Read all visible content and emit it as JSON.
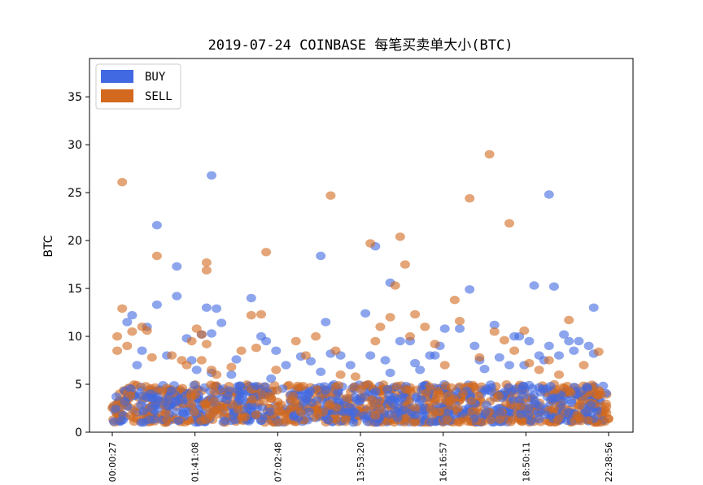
{
  "chart_data": {
    "type": "scatter",
    "title": "2019-07-24 COINBASE 每笔买卖单大小(BTC)",
    "xlabel": "",
    "ylabel": "BTC",
    "ylim": [
      0,
      39
    ],
    "yticks": [
      0,
      5,
      10,
      15,
      20,
      25,
      30,
      35
    ],
    "xtick_labels": [
      "00:00:27",
      "01:41:08",
      "07:02:48",
      "13:53:20",
      "16:16:57",
      "18:50:11",
      "22:38:56"
    ],
    "grid": false,
    "legend_position": "top-left",
    "series": [
      {
        "name": "BUY",
        "color": "#4169e1",
        "dense_band_max": 5,
        "outliers": [
          [
            0.03,
            11.5
          ],
          [
            0.04,
            12.2
          ],
          [
            0.05,
            7.0
          ],
          [
            0.06,
            8.5
          ],
          [
            0.07,
            11.0
          ],
          [
            0.09,
            21.6
          ],
          [
            0.09,
            13.3
          ],
          [
            0.11,
            8.0
          ],
          [
            0.13,
            17.3
          ],
          [
            0.13,
            14.2
          ],
          [
            0.15,
            9.8
          ],
          [
            0.16,
            7.5
          ],
          [
            0.17,
            6.5
          ],
          [
            0.2,
            6.2
          ],
          [
            0.18,
            10.2
          ],
          [
            0.19,
            13.0
          ],
          [
            0.2,
            10.3
          ],
          [
            0.21,
            12.9
          ],
          [
            0.2,
            26.8
          ],
          [
            0.22,
            11.4
          ],
          [
            0.24,
            6.0
          ],
          [
            0.25,
            7.6
          ],
          [
            0.28,
            14.0
          ],
          [
            0.3,
            10.0
          ],
          [
            0.31,
            9.5
          ],
          [
            0.33,
            8.5
          ],
          [
            0.32,
            5.6
          ],
          [
            0.35,
            7.0
          ],
          [
            0.38,
            7.9
          ],
          [
            0.4,
            7.4
          ],
          [
            0.42,
            6.3
          ],
          [
            0.42,
            18.4
          ],
          [
            0.43,
            11.5
          ],
          [
            0.44,
            8.2
          ],
          [
            0.46,
            8.0
          ],
          [
            0.48,
            7.0
          ],
          [
            0.51,
            12.4
          ],
          [
            0.52,
            8.0
          ],
          [
            0.53,
            19.4
          ],
          [
            0.55,
            7.5
          ],
          [
            0.56,
            6.2
          ],
          [
            0.56,
            15.6
          ],
          [
            0.58,
            9.5
          ],
          [
            0.6,
            9.5
          ],
          [
            0.61,
            7.2
          ],
          [
            0.62,
            6.5
          ],
          [
            0.64,
            8.0
          ],
          [
            0.65,
            8.0
          ],
          [
            0.66,
            9.0
          ],
          [
            0.67,
            10.8
          ],
          [
            0.7,
            10.8
          ],
          [
            0.72,
            14.9
          ],
          [
            0.73,
            9.0
          ],
          [
            0.74,
            7.5
          ],
          [
            0.75,
            6.6
          ],
          [
            0.77,
            11.2
          ],
          [
            0.78,
            7.8
          ],
          [
            0.8,
            7.0
          ],
          [
            0.81,
            10.0
          ],
          [
            0.82,
            10.0
          ],
          [
            0.83,
            7.0
          ],
          [
            0.84,
            9.5
          ],
          [
            0.85,
            15.3
          ],
          [
            0.86,
            8.0
          ],
          [
            0.87,
            7.5
          ],
          [
            0.88,
            24.8
          ],
          [
            0.88,
            9.0
          ],
          [
            0.89,
            15.2
          ],
          [
            0.9,
            8.0
          ],
          [
            0.91,
            10.2
          ],
          [
            0.92,
            9.5
          ],
          [
            0.93,
            8.5
          ],
          [
            0.94,
            9.5
          ],
          [
            0.96,
            9.0
          ],
          [
            0.97,
            8.2
          ],
          [
            0.97,
            13.0
          ]
        ]
      },
      {
        "name": "SELL",
        "color": "#d2691e",
        "dense_band_max": 5,
        "outliers": [
          [
            0.01,
            10.0
          ],
          [
            0.01,
            8.5
          ],
          [
            0.02,
            12.9
          ],
          [
            0.02,
            26.1
          ],
          [
            0.03,
            9.0
          ],
          [
            0.04,
            10.5
          ],
          [
            0.06,
            11.0
          ],
          [
            0.07,
            10.6
          ],
          [
            0.08,
            7.8
          ],
          [
            0.09,
            18.4
          ],
          [
            0.12,
            8.0
          ],
          [
            0.14,
            7.5
          ],
          [
            0.15,
            7.0
          ],
          [
            0.16,
            9.5
          ],
          [
            0.17,
            10.8
          ],
          [
            0.18,
            7.5
          ],
          [
            0.18,
            10.2
          ],
          [
            0.19,
            17.7
          ],
          [
            0.19,
            16.9
          ],
          [
            0.19,
            9.2
          ],
          [
            0.2,
            6.5
          ],
          [
            0.21,
            6.0
          ],
          [
            0.24,
            6.8
          ],
          [
            0.26,
            8.5
          ],
          [
            0.28,
            12.2
          ],
          [
            0.29,
            8.8
          ],
          [
            0.3,
            12.3
          ],
          [
            0.31,
            18.8
          ],
          [
            0.33,
            6.5
          ],
          [
            0.37,
            9.5
          ],
          [
            0.39,
            8.0
          ],
          [
            0.41,
            10.0
          ],
          [
            0.44,
            24.7
          ],
          [
            0.45,
            8.5
          ],
          [
            0.46,
            6.0
          ],
          [
            0.49,
            5.8
          ],
          [
            0.52,
            19.7
          ],
          [
            0.53,
            9.5
          ],
          [
            0.54,
            11.0
          ],
          [
            0.56,
            12.0
          ],
          [
            0.57,
            15.3
          ],
          [
            0.58,
            20.4
          ],
          [
            0.59,
            17.5
          ],
          [
            0.6,
            10.0
          ],
          [
            0.61,
            12.3
          ],
          [
            0.63,
            11.0
          ],
          [
            0.65,
            9.2
          ],
          [
            0.67,
            7.0
          ],
          [
            0.69,
            13.8
          ],
          [
            0.7,
            11.6
          ],
          [
            0.72,
            24.4
          ],
          [
            0.74,
            7.8
          ],
          [
            0.76,
            29.0
          ],
          [
            0.77,
            10.5
          ],
          [
            0.79,
            9.6
          ],
          [
            0.8,
            21.8
          ],
          [
            0.81,
            8.5
          ],
          [
            0.83,
            10.6
          ],
          [
            0.84,
            7.2
          ],
          [
            0.86,
            6.5
          ],
          [
            0.88,
            7.5
          ],
          [
            0.9,
            6.0
          ],
          [
            0.92,
            11.7
          ],
          [
            0.95,
            7.0
          ],
          [
            0.98,
            8.4
          ]
        ]
      }
    ]
  }
}
